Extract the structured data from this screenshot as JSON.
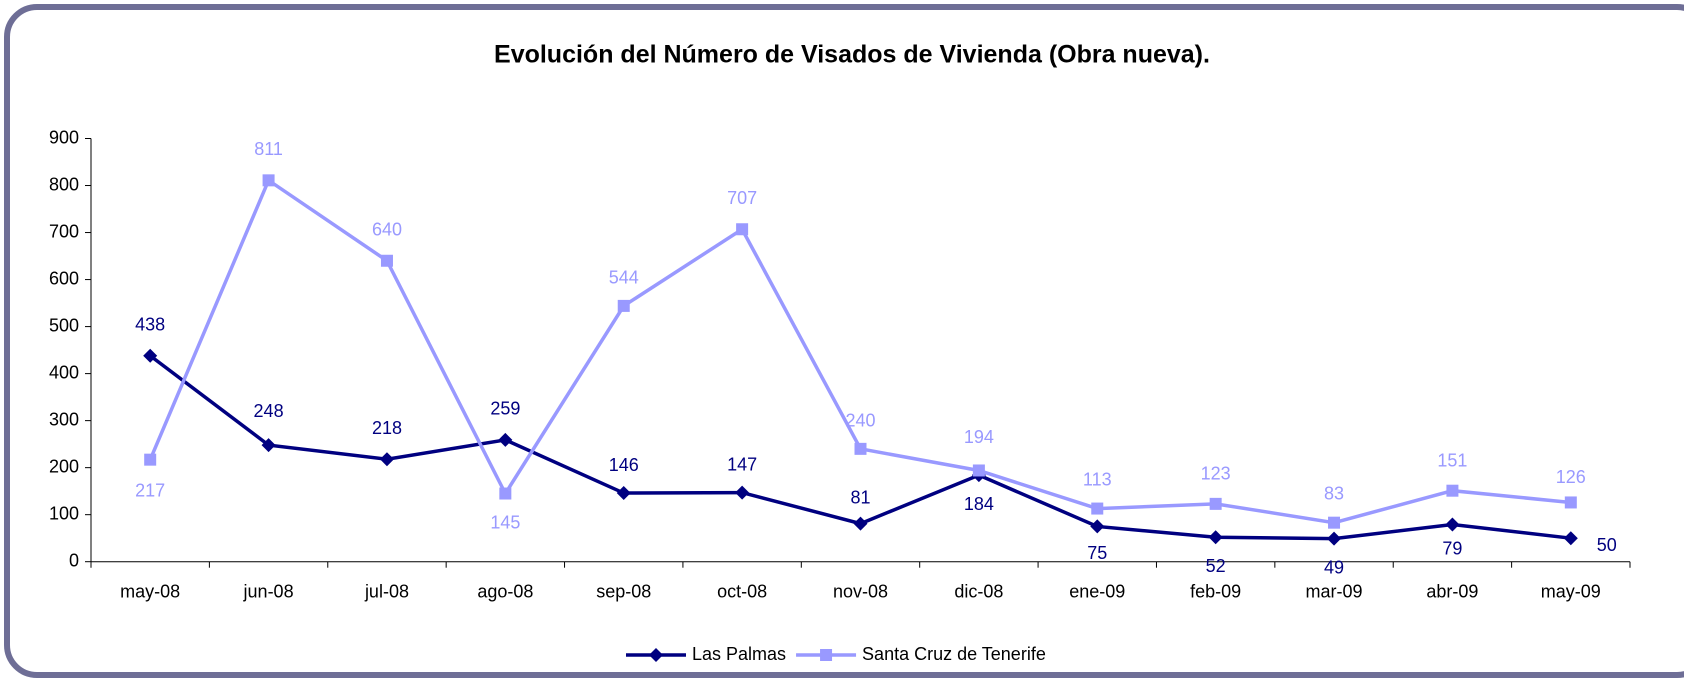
{
  "chart_data": {
    "type": "line",
    "title": "Evolución del Número de Visados de Vivienda (Obra nueva).",
    "categories": [
      "may-08",
      "jun-08",
      "jul-08",
      "ago-08",
      "sep-08",
      "oct-08",
      "nov-08",
      "dic-08",
      "ene-09",
      "feb-09",
      "mar-09",
      "abr-09",
      "may-09"
    ],
    "series": [
      {
        "name": "Las Palmas",
        "color": "#000080",
        "marker": "diamond",
        "values": [
          438,
          248,
          218,
          259,
          146,
          147,
          81,
          184,
          75,
          52,
          49,
          79,
          50
        ]
      },
      {
        "name": "Santa Cruz de Tenerife",
        "color": "#9999ff",
        "marker": "square",
        "values": [
          217,
          811,
          640,
          145,
          544,
          707,
          240,
          194,
          113,
          123,
          83,
          151,
          126
        ]
      }
    ],
    "ylim": [
      0,
      900
    ],
    "yticks": [
      0,
      100,
      200,
      300,
      400,
      500,
      600,
      700,
      800,
      900
    ],
    "grid": false,
    "legend": "bottom"
  }
}
